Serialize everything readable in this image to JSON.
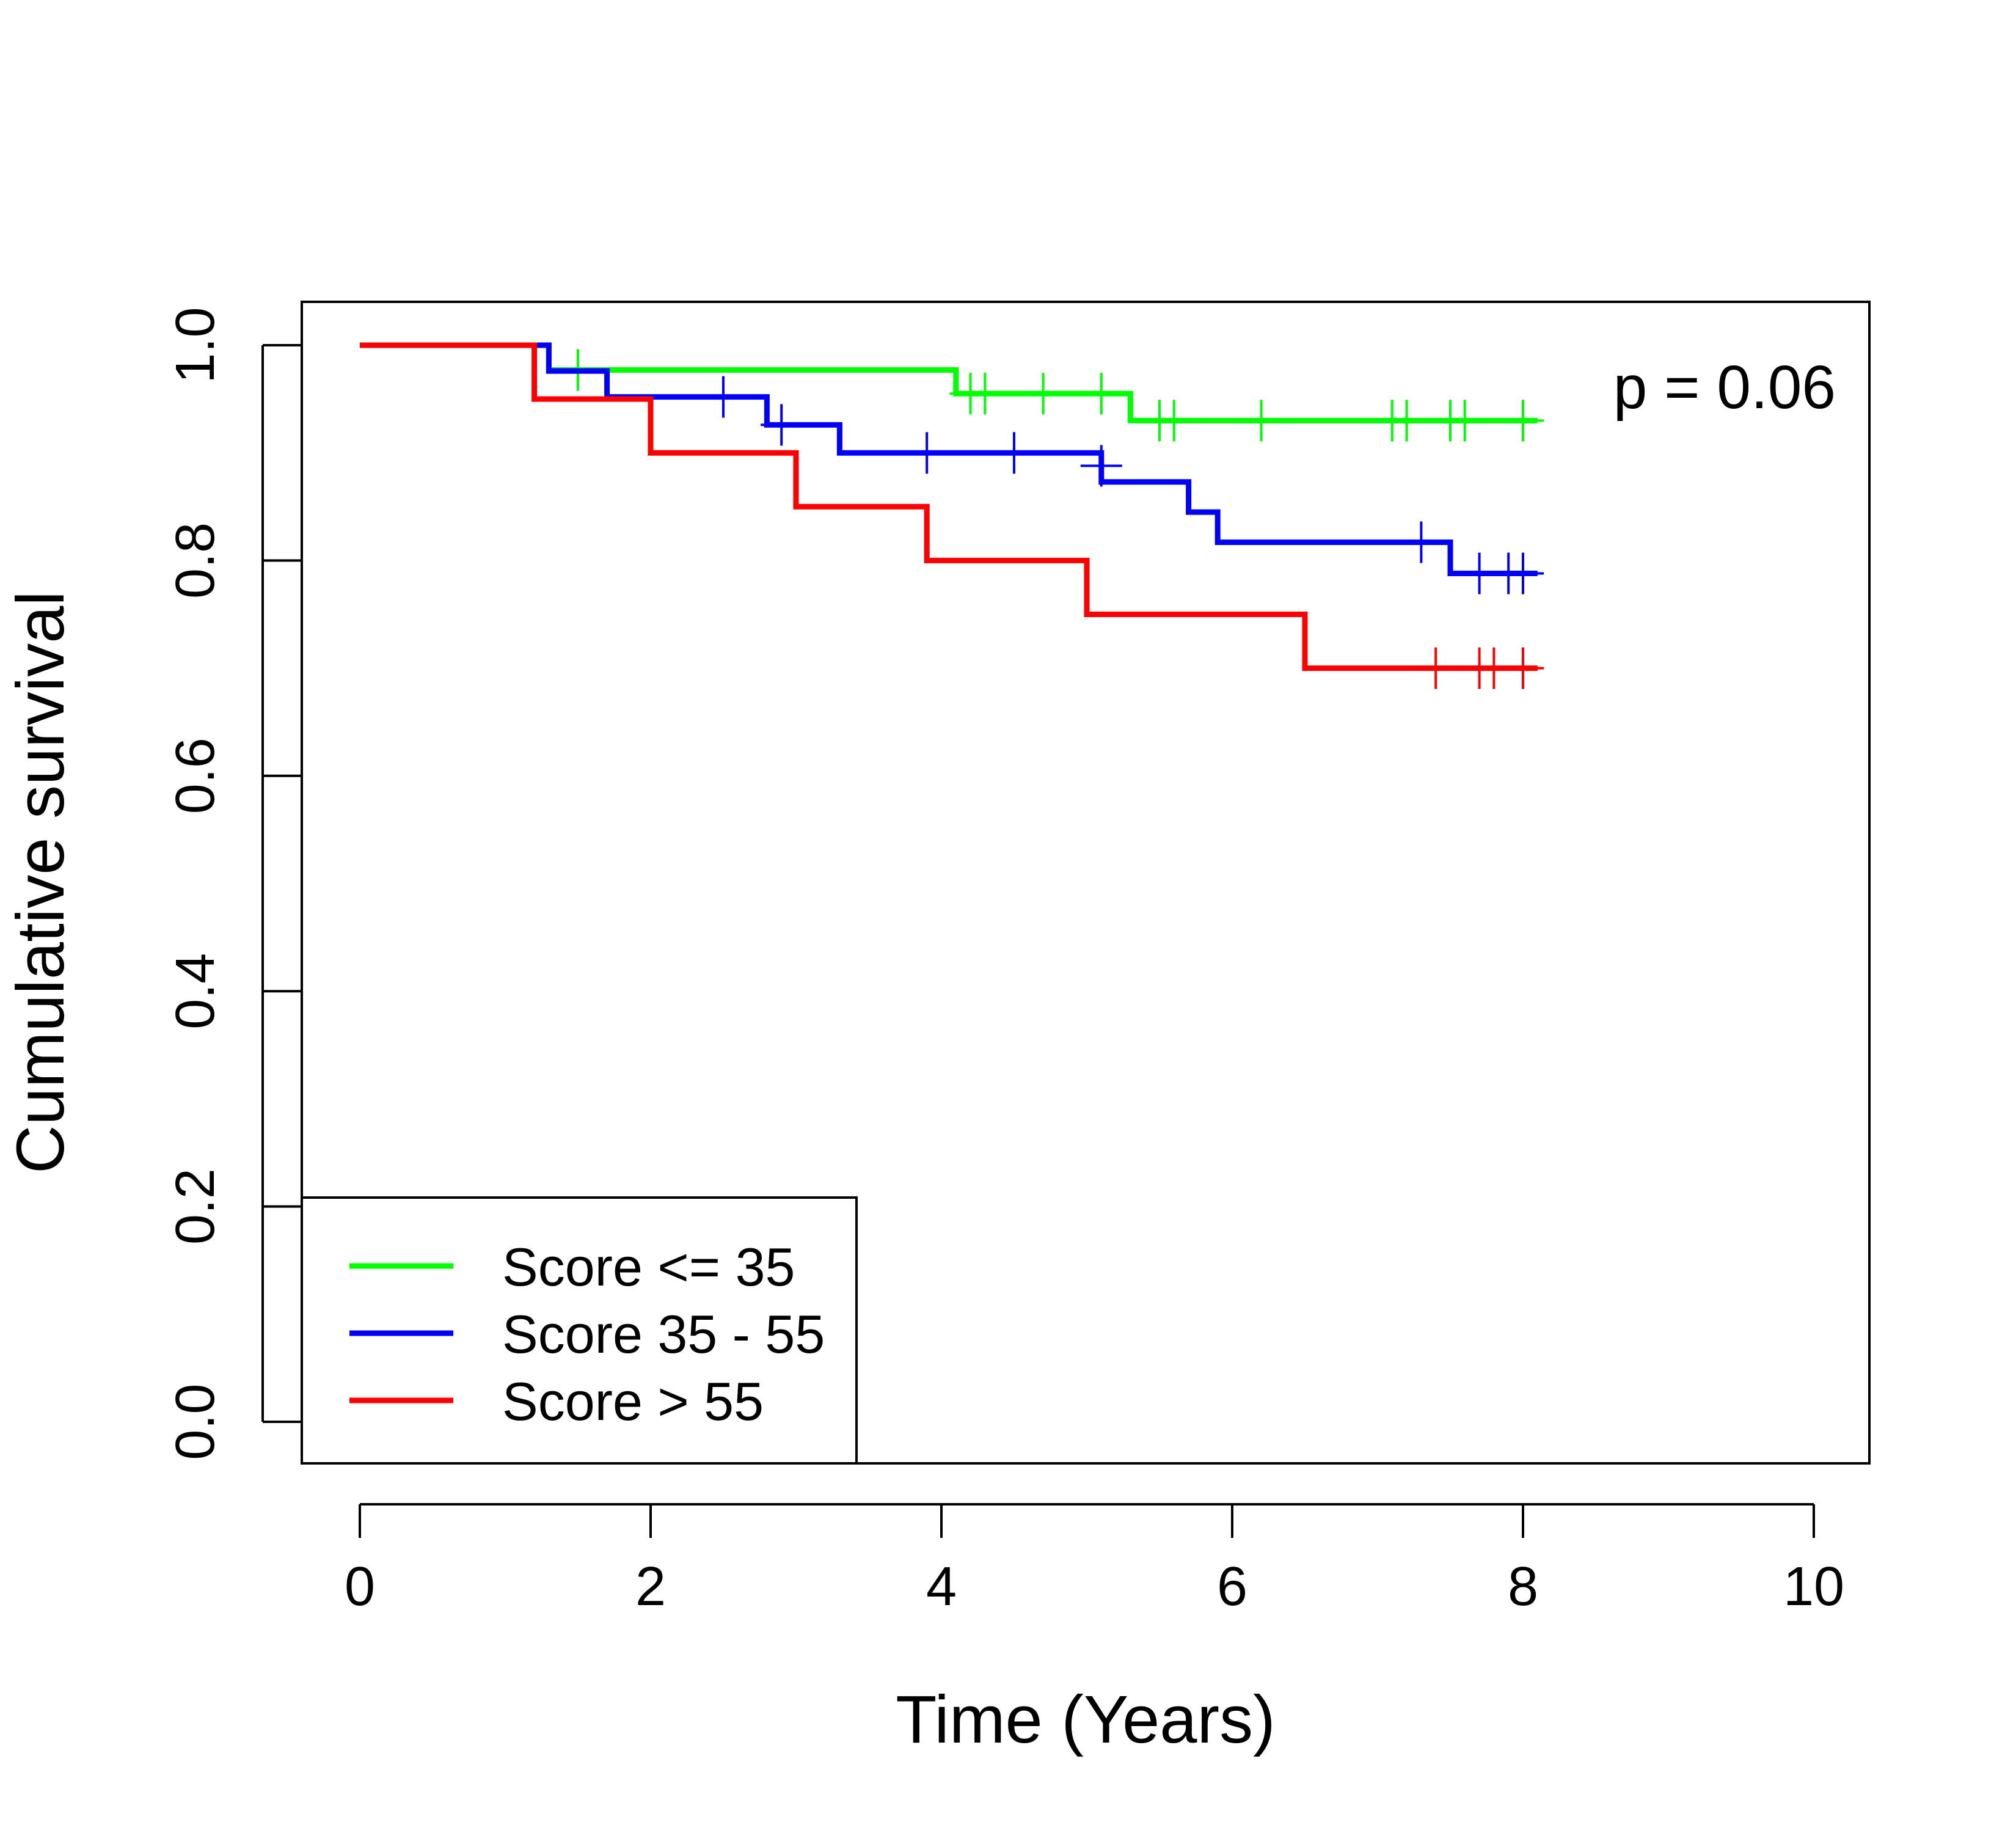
{
  "chart_data": {
    "type": "line",
    "title": "",
    "xlabel": "Time (Years)",
    "ylabel": "Cumulative survival",
    "xlim": [
      0,
      10
    ],
    "ylim": [
      0,
      1
    ],
    "x_ticks": [
      "0",
      "2",
      "4",
      "6",
      "8",
      "10"
    ],
    "y_ticks": [
      "0.0",
      "0.2",
      "0.4",
      "0.6",
      "0.8",
      "1.0"
    ],
    "grid": false,
    "legend_position": "bottom-left",
    "annotation": "p = 0.06",
    "series": [
      {
        "name": "Score <= 35",
        "color": "#00ff00",
        "steps": [
          [
            0,
            1.0
          ],
          [
            1.3,
            0.977
          ],
          [
            4.1,
            0.955
          ],
          [
            5.3,
            0.93
          ],
          [
            8.1,
            0.93
          ]
        ],
        "censor": [
          [
            1.5,
            0.977
          ],
          [
            4.2,
            0.955
          ],
          [
            4.3,
            0.955
          ],
          [
            4.7,
            0.955
          ],
          [
            5.1,
            0.955
          ],
          [
            5.5,
            0.93
          ],
          [
            5.6,
            0.93
          ],
          [
            6.2,
            0.93
          ],
          [
            7.1,
            0.93
          ],
          [
            7.2,
            0.93
          ],
          [
            7.5,
            0.93
          ],
          [
            7.6,
            0.93
          ],
          [
            8.0,
            0.93
          ]
        ]
      },
      {
        "name": "Score 35 - 55",
        "color": "#0000ff",
        "steps": [
          [
            0,
            1.0
          ],
          [
            1.3,
            0.976
          ],
          [
            1.7,
            0.952
          ],
          [
            2.8,
            0.926
          ],
          [
            3.3,
            0.9
          ],
          [
            5.1,
            0.873
          ],
          [
            5.7,
            0.845
          ],
          [
            5.9,
            0.817
          ],
          [
            7.5,
            0.788
          ],
          [
            8.1,
            0.788
          ]
        ],
        "censor": [
          [
            2.5,
            0.952
          ],
          [
            2.9,
            0.926
          ],
          [
            3.9,
            0.9
          ],
          [
            4.5,
            0.9
          ],
          [
            5.1,
            0.888
          ],
          [
            7.3,
            0.817
          ],
          [
            7.7,
            0.788
          ],
          [
            7.9,
            0.788
          ],
          [
            8.0,
            0.788
          ]
        ]
      },
      {
        "name": "Score > 55",
        "color": "#ff0000",
        "steps": [
          [
            0,
            1.0
          ],
          [
            1.2,
            0.95
          ],
          [
            2.0,
            0.9
          ],
          [
            3.0,
            0.85
          ],
          [
            3.9,
            0.8
          ],
          [
            5.0,
            0.75
          ],
          [
            6.5,
            0.7
          ],
          [
            8.1,
            0.7
          ]
        ],
        "censor": [
          [
            7.4,
            0.7
          ],
          [
            7.7,
            0.7
          ],
          [
            7.8,
            0.7
          ],
          [
            8.0,
            0.7
          ]
        ]
      }
    ]
  }
}
